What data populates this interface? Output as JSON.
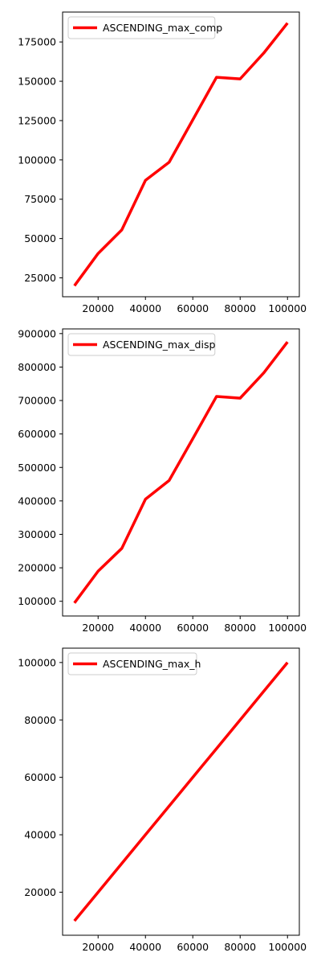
{
  "line_color": "#ff0000",
  "chart_data": [
    {
      "type": "line",
      "grid": false,
      "legend_position": "upper-left",
      "series": [
        {
          "name": "ASCENDING_max_comp",
          "x": [
            10000,
            20000,
            30000,
            40000,
            50000,
            60000,
            70000,
            80000,
            90000,
            100000
          ],
          "y": [
            20000,
            40500,
            55500,
            87000,
            98500,
            125500,
            152500,
            151500,
            168000,
            187000
          ]
        }
      ],
      "xlim": [
        5000,
        105000
      ],
      "ylim": [
        13000,
        194000
      ],
      "xticks": [
        20000,
        40000,
        60000,
        80000,
        100000
      ],
      "xtick_labels": [
        "20000",
        "40000",
        "60000",
        "80000",
        "100000"
      ],
      "yticks": [
        25000,
        50000,
        75000,
        100000,
        125000,
        150000,
        175000
      ],
      "ytick_labels": [
        "25000",
        "50000",
        "75000",
        "100000",
        "125000",
        "150000",
        "175000"
      ]
    },
    {
      "type": "line",
      "grid": false,
      "legend_position": "upper-left",
      "series": [
        {
          "name": "ASCENDING_max_disp",
          "x": [
            10000,
            20000,
            30000,
            40000,
            50000,
            60000,
            70000,
            80000,
            90000,
            100000
          ],
          "y": [
            95000,
            190000,
            258000,
            405000,
            461000,
            586000,
            712000,
            707000,
            783000,
            875000
          ]
        }
      ],
      "xlim": [
        5000,
        105000
      ],
      "ylim": [
        56000,
        914000
      ],
      "xticks": [
        20000,
        40000,
        60000,
        80000,
        100000
      ],
      "xtick_labels": [
        "20000",
        "40000",
        "60000",
        "80000",
        "100000"
      ],
      "yticks": [
        100000,
        200000,
        300000,
        400000,
        500000,
        600000,
        700000,
        800000,
        900000
      ],
      "ytick_labels": [
        "100000",
        "200000",
        "300000",
        "400000",
        "500000",
        "600000",
        "700000",
        "800000",
        "900000"
      ]
    },
    {
      "type": "line",
      "grid": false,
      "legend_position": "upper-left",
      "series": [
        {
          "name": "ASCENDING_max_h",
          "x": [
            10000,
            20000,
            30000,
            40000,
            50000,
            60000,
            70000,
            80000,
            90000,
            100000
          ],
          "y": [
            10000,
            20000,
            30000,
            40000,
            50000,
            60000,
            70000,
            80000,
            90000,
            100000
          ]
        }
      ],
      "xlim": [
        5000,
        105000
      ],
      "ylim": [
        5000,
        105000
      ],
      "xticks": [
        20000,
        40000,
        60000,
        80000,
        100000
      ],
      "xtick_labels": [
        "20000",
        "40000",
        "60000",
        "80000",
        "100000"
      ],
      "yticks": [
        20000,
        40000,
        60000,
        80000,
        100000
      ],
      "ytick_labels": [
        "20000",
        "40000",
        "60000",
        "80000",
        "100000"
      ]
    }
  ]
}
